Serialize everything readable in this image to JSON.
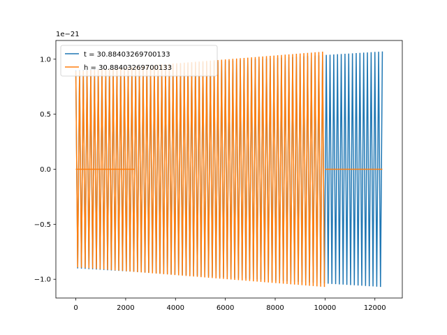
{
  "chart_data": {
    "type": "line",
    "xlim": [
      -800,
      13100
    ],
    "ylim": [
      -1.17,
      1.17
    ],
    "x_ticks": [
      0,
      2000,
      4000,
      6000,
      8000,
      10000,
      12000
    ],
    "y_ticks": [
      -1.0,
      -0.5,
      0.0,
      0.5,
      1.0
    ],
    "x_tick_labels": [
      "0",
      "2000",
      "4000",
      "6000",
      "8000",
      "10000",
      "12000"
    ],
    "y_tick_labels": [
      "−1.0",
      "−0.5",
      "0.0",
      "0.5",
      "1.0"
    ],
    "y_offset_label": "1e−21",
    "legend_position": "upper-left",
    "grid": false,
    "series": [
      {
        "name": "t = 30.88403269700133",
        "color": "#1f77b4",
        "x_start": 0,
        "x_end": 12300,
        "oscillation_period": 150,
        "amplitude_start": 0.9,
        "amplitude_end": 1.07,
        "flat_segments": []
      },
      {
        "name": "h = 30.88403269700133",
        "color": "#ff7f0e",
        "x_start": 0,
        "x_end": 12300,
        "oscillation_period": 150,
        "oscillation_x_range": [
          0,
          10000
        ],
        "amplitude_start": 0.89,
        "amplitude_end": 1.07,
        "flat_segments": [
          [
            0,
            2350
          ],
          [
            10000,
            12300
          ]
        ],
        "flat_value": 0.0
      }
    ]
  }
}
